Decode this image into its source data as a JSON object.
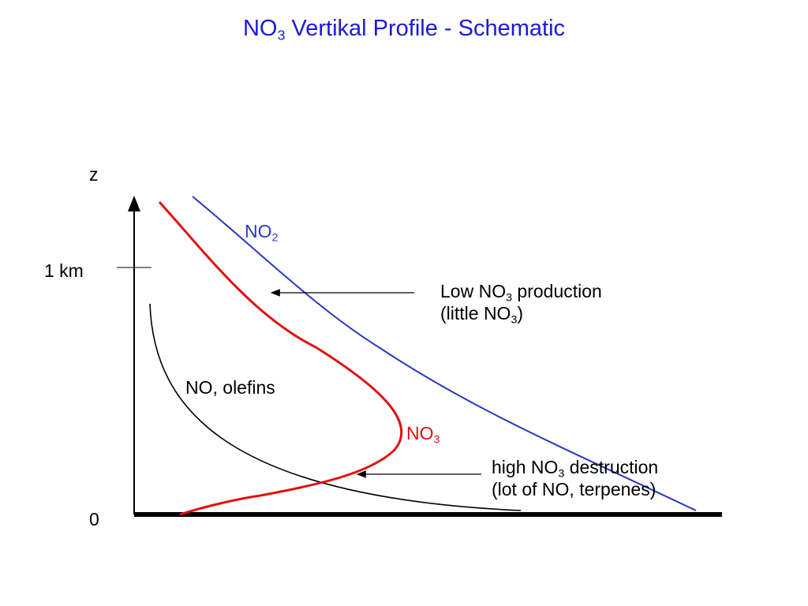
{
  "title": {
    "main": "NO",
    "sub": "3",
    "rest": " Vertikal Profile - Schematic"
  },
  "axis": {
    "z_label": "z",
    "km_label": "1 km",
    "zero_label": "0"
  },
  "curves": {
    "no2": {
      "main": "NO",
      "sub": "2",
      "color": "#2a38c0"
    },
    "no3": {
      "main": "NO",
      "sub": "3",
      "color": "#e01010"
    },
    "no_olefins": {
      "text": "NO,  olefins",
      "color": "#000000"
    }
  },
  "annotations": {
    "low": {
      "line1_a": "Low NO",
      "line1_sub": "3",
      "line1_b": " production",
      "line2_a": "(little NO",
      "line2_sub": "3",
      "line2_b": ")"
    },
    "high": {
      "line1_a": "high NO",
      "line1_sub": "3",
      "line1_b": " destruction",
      "line2": "(lot of NO, terpenes)"
    }
  }
}
